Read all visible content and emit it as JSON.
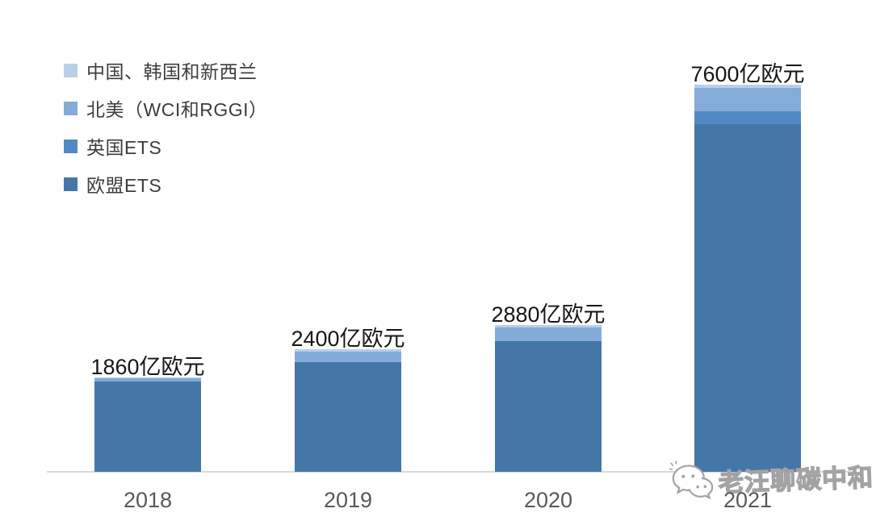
{
  "chart_data": {
    "type": "bar",
    "stacked": true,
    "title": "",
    "unit": "亿欧元",
    "categories": [
      "2018",
      "2019",
      "2020",
      "2021"
    ],
    "series": [
      {
        "name": "欧盟ETS",
        "color": "#4477a8",
        "values": [
          1770,
          2150,
          2560,
          6830
        ]
      },
      {
        "name": "英国ETS",
        "color": "#5289c4",
        "values": [
          0,
          0,
          0,
          250
        ]
      },
      {
        "name": "北美（WCI和RGGI）",
        "color": "#84abd9",
        "values": [
          60,
          210,
          270,
          460
        ]
      },
      {
        "name": "中国、韩国和新西兰",
        "color": "#b9cfe9",
        "values": [
          30,
          40,
          50,
          60
        ]
      }
    ],
    "totals": [
      1860,
      2400,
      2880,
      7600
    ],
    "total_labels": [
      "1860亿欧元",
      "2400亿欧元",
      "2880亿欧元",
      "7600亿欧元"
    ],
    "legend_position": "top-left",
    "legend_order_top_to_bottom": [
      "中国、韩国和新西兰",
      "北美（WCI和RGGI）",
      "英国ETS",
      "欧盟ETS"
    ],
    "grid": false,
    "ylim": [
      0,
      7600
    ],
    "x_axis_labels": [
      "2018",
      "2019",
      "2020",
      "2021"
    ]
  },
  "watermark": {
    "text": "老汪聊碳中和",
    "icon": "wechat-icon"
  },
  "colors": {
    "background": "#ffffff",
    "axis": "#d9d9d9",
    "value_label": "#161616",
    "year_label": "#595959",
    "legend_text": "#3d3d3d",
    "watermark": "#a3a3a3"
  }
}
